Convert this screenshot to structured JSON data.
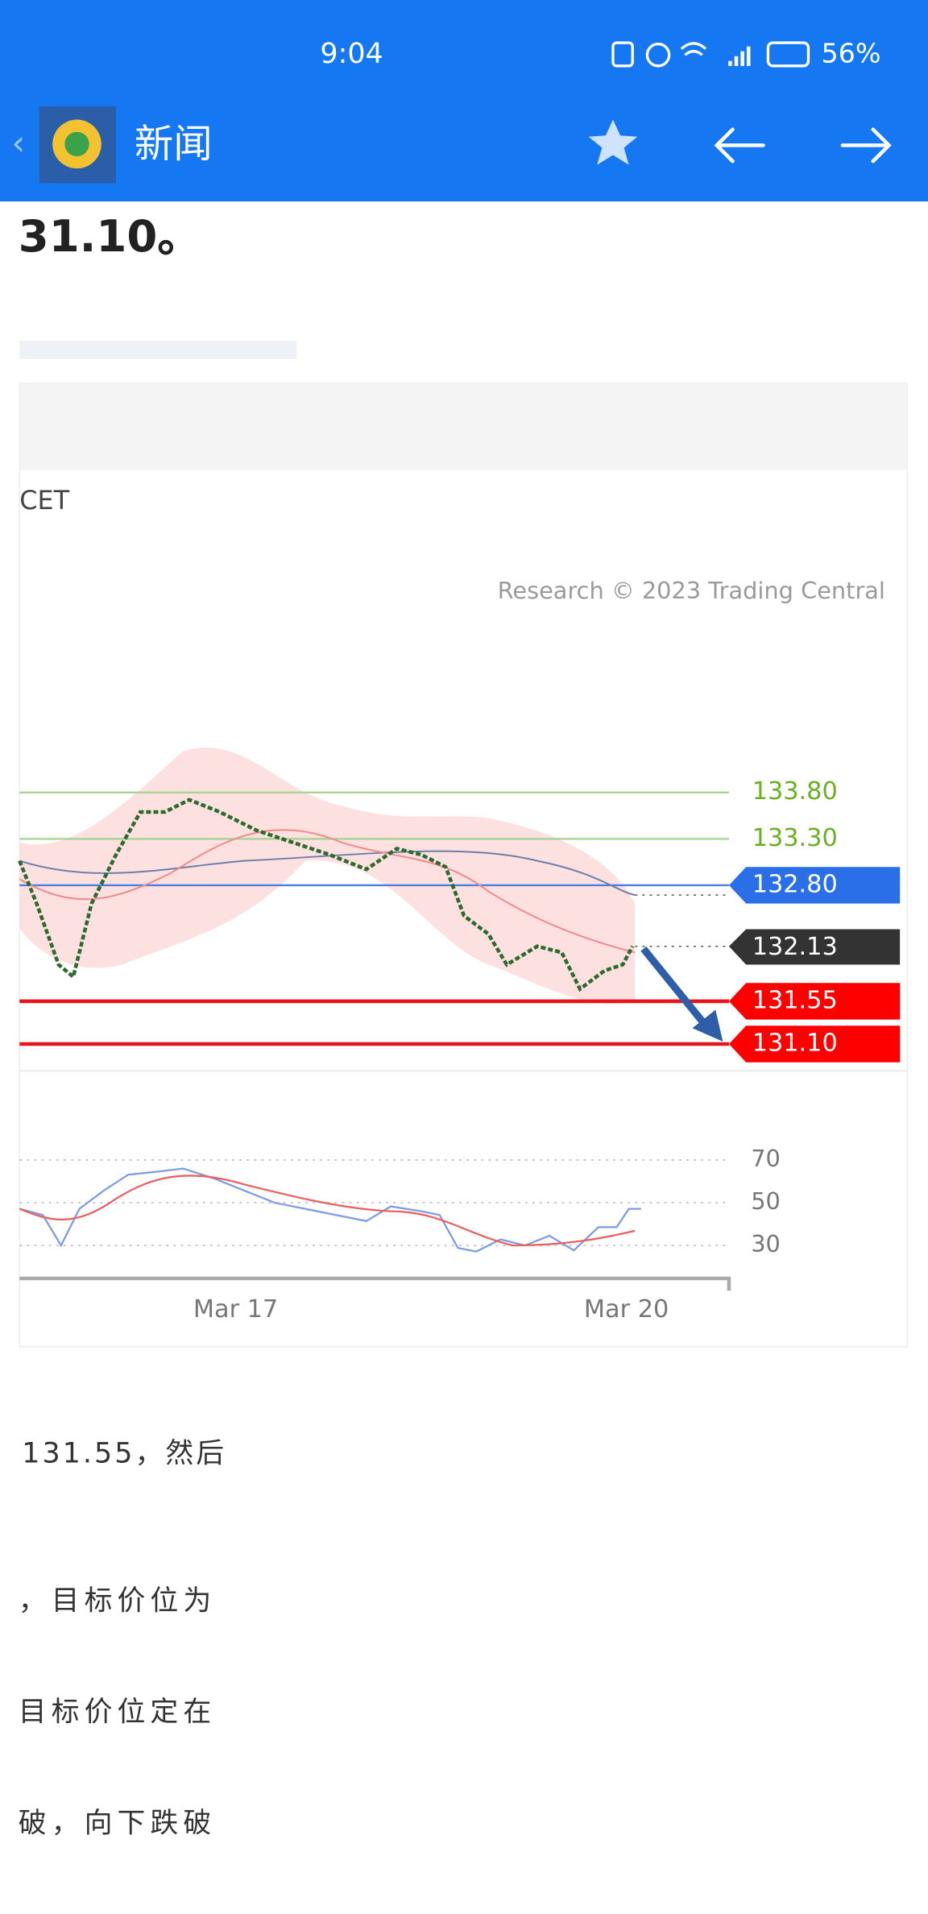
{
  "status_bar": {
    "time": "9:04",
    "battery": "56%"
  },
  "app_bar": {
    "title": "新闻"
  },
  "article": {
    "heading": "31.10。",
    "paragraphs": [
      "131.55，然后",
      "，目标价位为",
      "目标价位定在",
      "破，向下跌破"
    ]
  },
  "chart": {
    "timezone": "CET",
    "credit": "Research © 2023 Trading Central",
    "levels": [
      "133.80",
      "133.30",
      "132.80",
      "132.13",
      "131.55",
      "131.10"
    ],
    "rsi_ticks": [
      "70",
      "50",
      "30"
    ],
    "x_labels": [
      "Mar 17",
      "Mar 20"
    ]
  }
}
